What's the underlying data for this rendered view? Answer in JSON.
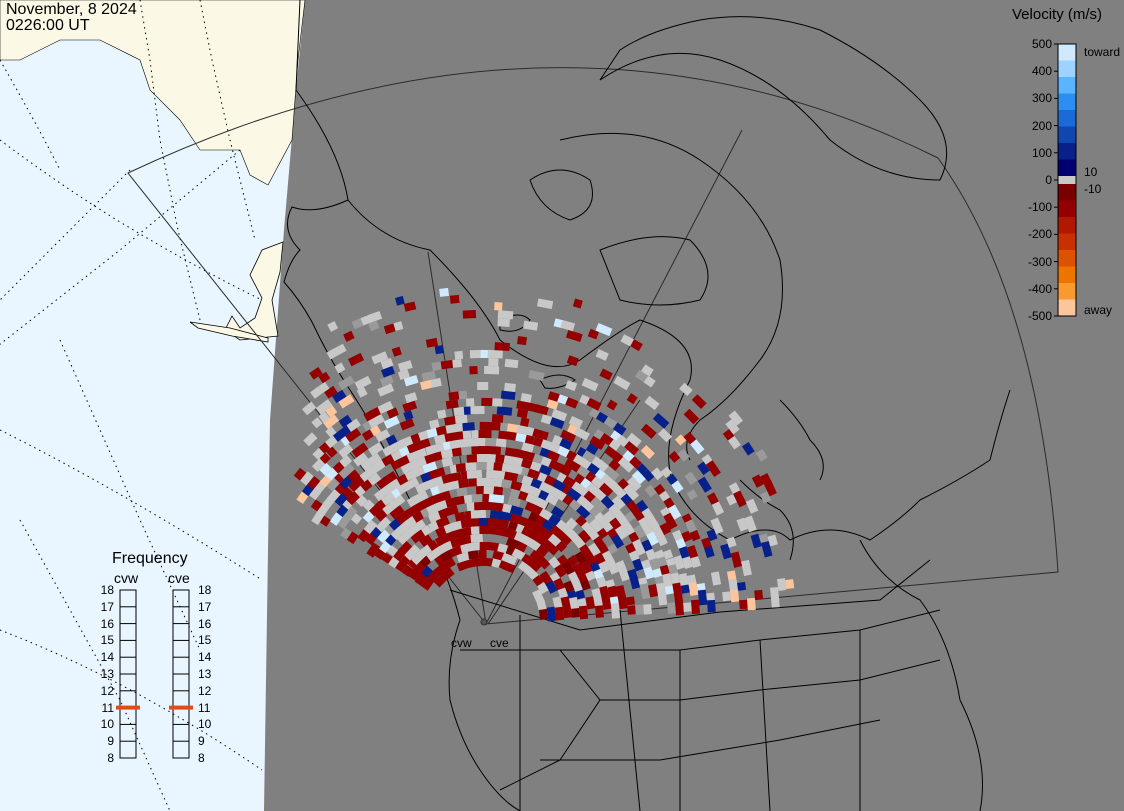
{
  "header": {
    "date": "November, 8 2024",
    "time": "0226:00 UT"
  },
  "velocity_legend": {
    "title": "Velocity (m/s)",
    "ticks": [
      "500",
      "400",
      "300",
      "200",
      "100",
      "0",
      "-100",
      "-200",
      "-300",
      "-400",
      "-500"
    ],
    "toward_label": "toward",
    "away_label": "away",
    "pos_threshold": "10",
    "neg_threshold": "-10",
    "toward_colors": [
      "#cfe9ff",
      "#9fd3ff",
      "#5ab4ff",
      "#2a8ff0",
      "#1b6bd6",
      "#1046b0",
      "#08208a",
      "#000070"
    ],
    "away_colors": [
      "#7a0000",
      "#940000",
      "#b01800",
      "#c83000",
      "#dd5200",
      "#ee7400",
      "#f89a30",
      "#fcc59c"
    ]
  },
  "frequency": {
    "title": "Frequency",
    "radar_left": "cvw",
    "radar_right": "cve",
    "ticks": [
      "18",
      "17",
      "16",
      "15",
      "14",
      "13",
      "12",
      "11",
      "10",
      "9",
      "8"
    ],
    "current_left_mhz": 11,
    "current_right_mhz": 11,
    "marker_color": "#e34a1a"
  },
  "radars": {
    "site_labels": [
      "cvw",
      "cve"
    ]
  },
  "colors": {
    "background": "#808080",
    "sunlit_sea": "#eaf6ff",
    "sunlit_land": "#fbf8e6",
    "ground_scatter": "#c8c8c8",
    "coastline": "#000000"
  }
}
